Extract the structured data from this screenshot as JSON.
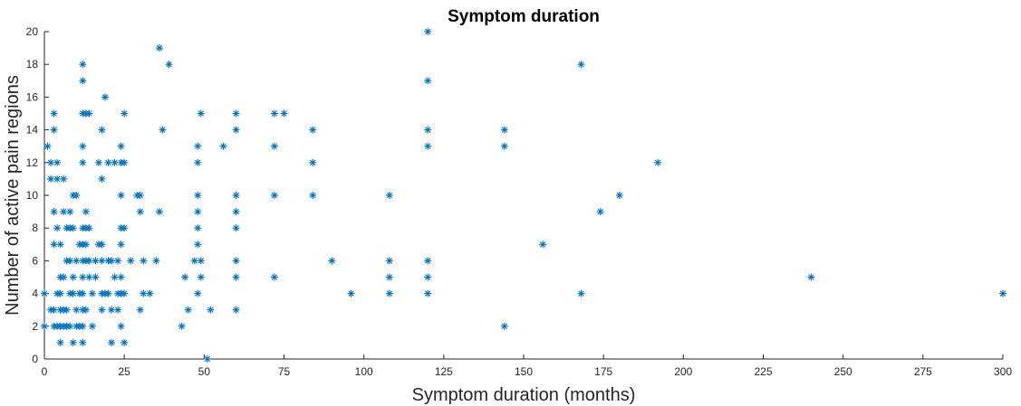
{
  "chart_data": {
    "type": "scatter",
    "title": "Symptom duration",
    "xlabel": "Symptom duration (months)",
    "ylabel": "Number of active pain regions",
    "xlim": [
      0,
      300
    ],
    "ylim": [
      0,
      20
    ],
    "xticks": [
      0,
      25,
      50,
      75,
      100,
      125,
      150,
      175,
      200,
      225,
      250,
      275,
      300
    ],
    "yticks": [
      0,
      2,
      4,
      6,
      8,
      10,
      12,
      14,
      16,
      18,
      20
    ],
    "grid": false,
    "marker": "asterisk",
    "marker_color": "#0072BD",
    "series": [
      {
        "points": [
          [
            0,
            2
          ],
          [
            0,
            4
          ],
          [
            1,
            13
          ],
          [
            2,
            3
          ],
          [
            2,
            12
          ],
          [
            2,
            11
          ],
          [
            3,
            14
          ],
          [
            3,
            15
          ],
          [
            3,
            9
          ],
          [
            3,
            3
          ],
          [
            3,
            2
          ],
          [
            3,
            7
          ],
          [
            4,
            4
          ],
          [
            4,
            8
          ],
          [
            4,
            2
          ],
          [
            4,
            11
          ],
          [
            4,
            12
          ],
          [
            5,
            2
          ],
          [
            5,
            4
          ],
          [
            5,
            3
          ],
          [
            5,
            5
          ],
          [
            5,
            1
          ],
          [
            5,
            7
          ],
          [
            6,
            3
          ],
          [
            6,
            9
          ],
          [
            6,
            5
          ],
          [
            6,
            11
          ],
          [
            6,
            2
          ],
          [
            7,
            2
          ],
          [
            7,
            3
          ],
          [
            7,
            6
          ],
          [
            7,
            8
          ],
          [
            8,
            2
          ],
          [
            8,
            6
          ],
          [
            8,
            9
          ],
          [
            8,
            4
          ],
          [
            8,
            8
          ],
          [
            9,
            4
          ],
          [
            9,
            10
          ],
          [
            9,
            5
          ],
          [
            9,
            8
          ],
          [
            9,
            1
          ],
          [
            10,
            10
          ],
          [
            10,
            2
          ],
          [
            10,
            3
          ],
          [
            10,
            6
          ],
          [
            11,
            2
          ],
          [
            11,
            4
          ],
          [
            11,
            7
          ],
          [
            12,
            5
          ],
          [
            12,
            18
          ],
          [
            12,
            17
          ],
          [
            12,
            15
          ],
          [
            12,
            13
          ],
          [
            12,
            12
          ],
          [
            12,
            8
          ],
          [
            12,
            7
          ],
          [
            12,
            6
          ],
          [
            12,
            4
          ],
          [
            12,
            3
          ],
          [
            12,
            2
          ],
          [
            12,
            1
          ],
          [
            13,
            15
          ],
          [
            13,
            9
          ],
          [
            13,
            8
          ],
          [
            13,
            6
          ],
          [
            13,
            3
          ],
          [
            13,
            7
          ],
          [
            14,
            5
          ],
          [
            14,
            15
          ],
          [
            14,
            8
          ],
          [
            14,
            6
          ],
          [
            15,
            2
          ],
          [
            15,
            4
          ],
          [
            16,
            6
          ],
          [
            16,
            5
          ],
          [
            17,
            7
          ],
          [
            17,
            12
          ],
          [
            18,
            4
          ],
          [
            18,
            3
          ],
          [
            18,
            7
          ],
          [
            18,
            14
          ],
          [
            18,
            6
          ],
          [
            18,
            11
          ],
          [
            19,
            16
          ],
          [
            19,
            4
          ],
          [
            20,
            4
          ],
          [
            20,
            6
          ],
          [
            20,
            12
          ],
          [
            21,
            1
          ],
          [
            21,
            3
          ],
          [
            21,
            6
          ],
          [
            22,
            12
          ],
          [
            22,
            5
          ],
          [
            23,
            6
          ],
          [
            23,
            4
          ],
          [
            23,
            3
          ],
          [
            24,
            13
          ],
          [
            24,
            10
          ],
          [
            24,
            8
          ],
          [
            24,
            7
          ],
          [
            24,
            5
          ],
          [
            24,
            2
          ],
          [
            24,
            12
          ],
          [
            24,
            4
          ],
          [
            25,
            15
          ],
          [
            25,
            8
          ],
          [
            25,
            12
          ],
          [
            25,
            4
          ],
          [
            25,
            1
          ],
          [
            27,
            6
          ],
          [
            29,
            10
          ],
          [
            30,
            3
          ],
          [
            30,
            9
          ],
          [
            30,
            10
          ],
          [
            31,
            6
          ],
          [
            31,
            4
          ],
          [
            33,
            4
          ],
          [
            35,
            6
          ],
          [
            36,
            19
          ],
          [
            36,
            9
          ],
          [
            37,
            14
          ],
          [
            39,
            18
          ],
          [
            43,
            2
          ],
          [
            44,
            5
          ],
          [
            45,
            3
          ],
          [
            47,
            6
          ],
          [
            48,
            13
          ],
          [
            48,
            12
          ],
          [
            48,
            10
          ],
          [
            48,
            9
          ],
          [
            48,
            8
          ],
          [
            48,
            7
          ],
          [
            48,
            4
          ],
          [
            49,
            15
          ],
          [
            49,
            6
          ],
          [
            49,
            5
          ],
          [
            51,
            0
          ],
          [
            52,
            3
          ],
          [
            56,
            13
          ],
          [
            60,
            15
          ],
          [
            60,
            14
          ],
          [
            60,
            10
          ],
          [
            60,
            9
          ],
          [
            60,
            8
          ],
          [
            60,
            6
          ],
          [
            60,
            5
          ],
          [
            60,
            3
          ],
          [
            72,
            15
          ],
          [
            72,
            13
          ],
          [
            72,
            10
          ],
          [
            72,
            5
          ],
          [
            75,
            15
          ],
          [
            84,
            14
          ],
          [
            84,
            12
          ],
          [
            84,
            10
          ],
          [
            90,
            6
          ],
          [
            96,
            4
          ],
          [
            108,
            10
          ],
          [
            108,
            6
          ],
          [
            108,
            5
          ],
          [
            108,
            4
          ],
          [
            120,
            20
          ],
          [
            120,
            17
          ],
          [
            120,
            14
          ],
          [
            120,
            13
          ],
          [
            120,
            6
          ],
          [
            120,
            5
          ],
          [
            120,
            4
          ],
          [
            144,
            14
          ],
          [
            144,
            13
          ],
          [
            144,
            2
          ],
          [
            156,
            7
          ],
          [
            168,
            18
          ],
          [
            168,
            4
          ],
          [
            174,
            9
          ],
          [
            180,
            10
          ],
          [
            192,
            12
          ],
          [
            240,
            5
          ],
          [
            300,
            4
          ]
        ]
      }
    ]
  }
}
